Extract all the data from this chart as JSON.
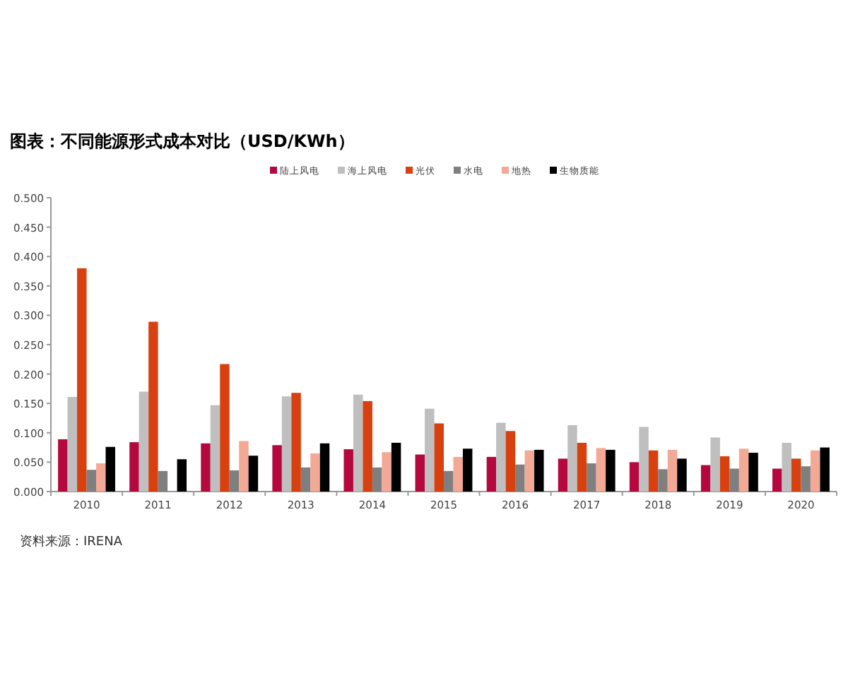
{
  "chart_data": {
    "type": "bar",
    "title": "图表：不同能源形式成本对比（USD/KWh）",
    "categories": [
      "2010",
      "2011",
      "2012",
      "2013",
      "2014",
      "2015",
      "2016",
      "2017",
      "2018",
      "2019",
      "2020"
    ],
    "series": [
      {
        "name": "陆上风电",
        "color": "#b5083f",
        "values": [
          0.089,
          0.084,
          0.082,
          0.079,
          0.072,
          0.063,
          0.059,
          0.056,
          0.05,
          0.045,
          0.039
        ]
      },
      {
        "name": "海上风电",
        "color": "#bfbfbf",
        "values": [
          0.161,
          0.17,
          0.147,
          0.162,
          0.165,
          0.141,
          0.117,
          0.113,
          0.11,
          0.092,
          0.083
        ]
      },
      {
        "name": "光伏",
        "color": "#d9400f",
        "values": [
          0.38,
          0.289,
          0.217,
          0.168,
          0.154,
          0.116,
          0.103,
          0.083,
          0.07,
          0.06,
          0.056
        ]
      },
      {
        "name": "水电",
        "color": "#7f7f7f",
        "values": [
          0.037,
          0.035,
          0.036,
          0.041,
          0.041,
          0.035,
          0.046,
          0.048,
          0.038,
          0.039,
          0.043
        ]
      },
      {
        "name": "地热",
        "color": "#f4a896",
        "values": [
          0.048,
          null,
          0.086,
          0.065,
          0.067,
          0.059,
          0.07,
          0.074,
          0.071,
          0.073,
          0.07
        ]
      },
      {
        "name": "生物质能",
        "color": "#000000",
        "values": [
          0.076,
          0.055,
          0.061,
          0.082,
          0.083,
          0.073,
          0.071,
          0.071,
          0.056,
          0.066,
          0.075
        ]
      }
    ],
    "ylim": [
      0,
      0.5
    ],
    "yticks": [
      {
        "value": 0,
        "label": "0.000"
      },
      {
        "value": 0.05,
        "label": "0.050"
      },
      {
        "value": 0.1,
        "label": "0.100"
      },
      {
        "value": 0.15,
        "label": "0.150"
      },
      {
        "value": 0.2,
        "label": "0.200"
      },
      {
        "value": 0.25,
        "label": "0.250"
      },
      {
        "value": 0.3,
        "label": "0.300"
      },
      {
        "value": 0.35,
        "label": "0.350"
      },
      {
        "value": 0.4,
        "label": "0.400"
      },
      {
        "value": 0.45,
        "label": "0.450"
      },
      {
        "value": 0.5,
        "label": "0.500"
      }
    ],
    "legend": "top",
    "annotations": [
      "资料来源：IRENA"
    ]
  }
}
